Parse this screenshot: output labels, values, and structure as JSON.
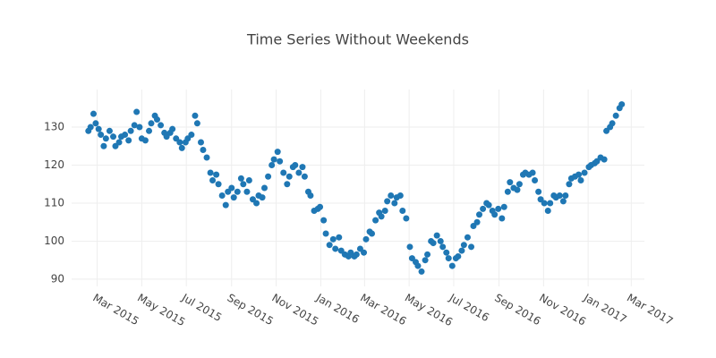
{
  "chart_data": {
    "type": "scatter",
    "title": "Time Series Without Weekends",
    "color": "#1f77b4",
    "grid": true,
    "xlim": [
      "2015-01-25",
      "2017-03-19"
    ],
    "ylim": [
      88.1,
      139.9
    ],
    "yticks": [
      90,
      100,
      110,
      120,
      130
    ],
    "xticks": [
      {
        "value": "2015-03-01",
        "label": "Mar 2015"
      },
      {
        "value": "2015-05-01",
        "label": "May 2015"
      },
      {
        "value": "2015-07-01",
        "label": "Jul 2015"
      },
      {
        "value": "2015-09-01",
        "label": "Sep 2015"
      },
      {
        "value": "2015-11-01",
        "label": "Nov 2015"
      },
      {
        "value": "2016-01-01",
        "label": "Jan 2016"
      },
      {
        "value": "2016-03-01",
        "label": "Mar 2016"
      },
      {
        "value": "2016-05-01",
        "label": "May 2016"
      },
      {
        "value": "2016-07-01",
        "label": "Jul 2016"
      },
      {
        "value": "2016-09-01",
        "label": "Sep 2016"
      },
      {
        "value": "2016-11-01",
        "label": "Nov 2016"
      },
      {
        "value": "2017-01-01",
        "label": "Jan 2017"
      },
      {
        "value": "2017-03-01",
        "label": "Mar 2017"
      }
    ],
    "x": [
      "2015-02-17",
      "2015-02-20",
      "2015-02-24",
      "2015-02-27",
      "2015-03-03",
      "2015-03-06",
      "2015-03-10",
      "2015-03-13",
      "2015-03-18",
      "2015-03-23",
      "2015-03-26",
      "2015-03-31",
      "2015-04-03",
      "2015-04-08",
      "2015-04-13",
      "2015-04-16",
      "2015-04-21",
      "2015-04-24",
      "2015-04-28",
      "2015-05-01",
      "2015-05-06",
      "2015-05-11",
      "2015-05-14",
      "2015-05-19",
      "2015-05-22",
      "2015-05-27",
      "2015-06-01",
      "2015-06-04",
      "2015-06-09",
      "2015-06-12",
      "2015-06-17",
      "2015-06-22",
      "2015-06-25",
      "2015-06-30",
      "2015-07-03",
      "2015-07-08",
      "2015-07-13",
      "2015-07-16",
      "2015-07-21",
      "2015-07-24",
      "2015-07-29",
      "2015-08-03",
      "2015-08-06",
      "2015-08-11",
      "2015-08-14",
      "2015-08-19",
      "2015-08-24",
      "2015-08-27",
      "2015-09-01",
      "2015-09-04",
      "2015-09-09",
      "2015-09-14",
      "2015-09-17",
      "2015-09-22",
      "2015-09-25",
      "2015-09-30",
      "2015-10-05",
      "2015-10-08",
      "2015-10-13",
      "2015-10-16",
      "2015-10-21",
      "2015-10-26",
      "2015-10-29",
      "2015-11-03",
      "2015-11-06",
      "2015-11-11",
      "2015-11-16",
      "2015-11-19",
      "2015-11-24",
      "2015-11-27",
      "2015-12-02",
      "2015-12-07",
      "2015-12-10",
      "2015-12-15",
      "2015-12-18",
      "2015-12-23",
      "2015-12-28",
      "2015-12-31",
      "2016-01-05",
      "2016-01-08",
      "2016-01-13",
      "2016-01-18",
      "2016-01-21",
      "2016-01-26",
      "2016-01-29",
      "2016-02-03",
      "2016-02-08",
      "2016-02-11",
      "2016-02-16",
      "2016-02-19",
      "2016-02-24",
      "2016-02-29",
      "2016-03-03",
      "2016-03-08",
      "2016-03-11",
      "2016-03-16",
      "2016-03-21",
      "2016-03-24",
      "2016-03-29",
      "2016-04-01",
      "2016-04-06",
      "2016-04-11",
      "2016-04-14",
      "2016-04-19",
      "2016-04-22",
      "2016-04-27",
      "2016-05-02",
      "2016-05-05",
      "2016-05-10",
      "2016-05-13",
      "2016-05-18",
      "2016-05-23",
      "2016-05-26",
      "2016-05-31",
      "2016-06-03",
      "2016-06-08",
      "2016-06-13",
      "2016-06-16",
      "2016-06-21",
      "2016-06-24",
      "2016-06-29",
      "2016-07-04",
      "2016-07-07",
      "2016-07-12",
      "2016-07-15",
      "2016-07-20",
      "2016-07-25",
      "2016-07-28",
      "2016-08-02",
      "2016-08-05",
      "2016-08-10",
      "2016-08-15",
      "2016-08-18",
      "2016-08-23",
      "2016-08-26",
      "2016-08-31",
      "2016-09-05",
      "2016-09-08",
      "2016-09-13",
      "2016-09-16",
      "2016-09-21",
      "2016-09-26",
      "2016-09-29",
      "2016-10-04",
      "2016-10-07",
      "2016-10-12",
      "2016-10-17",
      "2016-10-20",
      "2016-10-25",
      "2016-10-28",
      "2016-11-02",
      "2016-11-07",
      "2016-11-10",
      "2016-11-15",
      "2016-11-18",
      "2016-11-23",
      "2016-11-28",
      "2016-12-01",
      "2016-12-06",
      "2016-12-09",
      "2016-12-14",
      "2016-12-19",
      "2016-12-22",
      "2016-12-27",
      "2017-01-02",
      "2017-01-05",
      "2017-01-10",
      "2017-01-13",
      "2017-01-18",
      "2017-01-23",
      "2017-01-26",
      "2017-01-31",
      "2017-02-03",
      "2017-02-08",
      "2017-02-13",
      "2017-02-16"
    ],
    "values": [
      129,
      130,
      133.5,
      131,
      129.5,
      128,
      125,
      127,
      129,
      127.5,
      125,
      126,
      127.5,
      128,
      126.5,
      129,
      130.5,
      134,
      130,
      127,
      126.5,
      129,
      131,
      133,
      132,
      130.5,
      128.5,
      127.5,
      128.5,
      129.5,
      127,
      126,
      124.5,
      126,
      127,
      128,
      133,
      131,
      126,
      124,
      122,
      118,
      116,
      117.5,
      115,
      112,
      109.5,
      113,
      114,
      111.5,
      113,
      116.5,
      115,
      113,
      116,
      111,
      110,
      112,
      111.5,
      114,
      117,
      120,
      121.5,
      123.5,
      121,
      118,
      115,
      117,
      119.5,
      120,
      118,
      119.5,
      117,
      113,
      112,
      108,
      108.5,
      109,
      105.5,
      102,
      99,
      100.5,
      98,
      101,
      97.5,
      96.5,
      96,
      97,
      96,
      96.5,
      98,
      97,
      100.5,
      102.5,
      102,
      105.5,
      107.5,
      106.5,
      108,
      110.5,
      112,
      110,
      111.5,
      112,
      108,
      106,
      98.5,
      95.5,
      94.5,
      93.5,
      92,
      95,
      96.5,
      100,
      99.5,
      101.5,
      100,
      98.5,
      97,
      95.5,
      93.5,
      95.5,
      96,
      97.5,
      99,
      101,
      98.5,
      104,
      105,
      107,
      108.5,
      110,
      109.5,
      108,
      107,
      108.5,
      106,
      109,
      113,
      115.5,
      114,
      113.5,
      115,
      117.5,
      118,
      117.5,
      118,
      116,
      113,
      111,
      110,
      108,
      110,
      112,
      111.5,
      112,
      110.5,
      112,
      115,
      116.5,
      117,
      117.5,
      116,
      118,
      119.5,
      120,
      120.5,
      121,
      122,
      121.5,
      129,
      130,
      131,
      133,
      135,
      136
    ]
  }
}
